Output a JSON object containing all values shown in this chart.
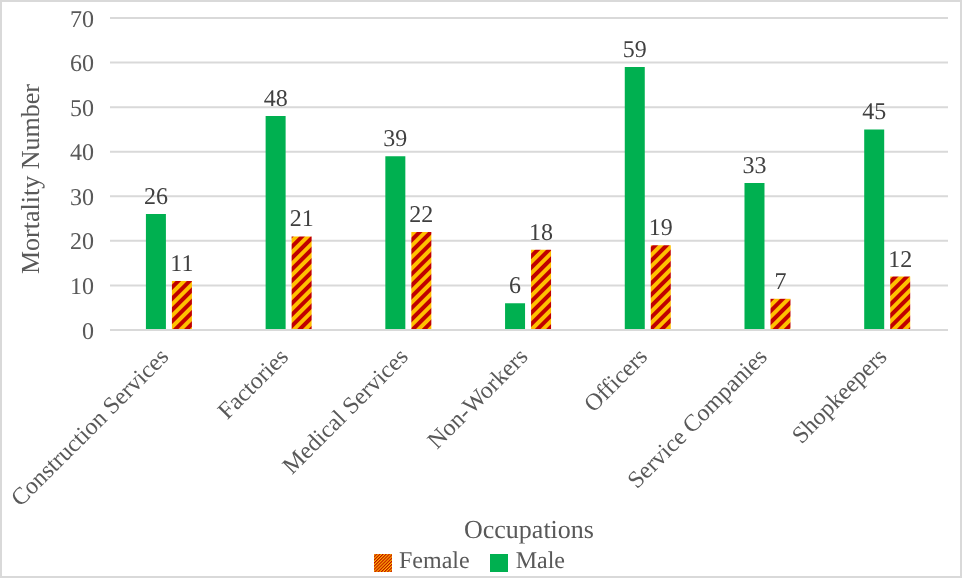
{
  "chart_data": {
    "type": "bar",
    "xlabel": "Occupations",
    "ylabel": "Mortality Number",
    "categories": [
      "Construction Services",
      "Factories",
      "Medical Services",
      "Non-Workers",
      "Officers",
      "Service Companies",
      "Shopkeepers"
    ],
    "series": [
      {
        "name": "Male",
        "color": "#00b050",
        "values": [
          26,
          48,
          39,
          6,
          59,
          33,
          45
        ]
      },
      {
        "name": "Female",
        "color": "#c00000",
        "values": [
          11,
          21,
          22,
          18,
          19,
          7,
          12
        ]
      }
    ],
    "ylim": [
      0,
      70
    ],
    "yticks": [
      0,
      10,
      20,
      30,
      40,
      50,
      60,
      70
    ],
    "grid": "y",
    "legend": "bottom",
    "data_labels": true
  }
}
